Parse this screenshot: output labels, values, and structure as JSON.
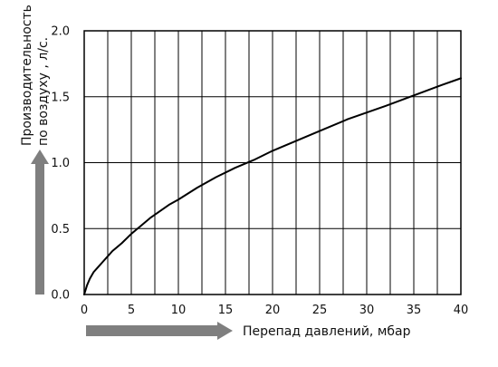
{
  "chart_data": {
    "type": "line",
    "title": "",
    "xlabel": "Перепад давлений, мбар",
    "ylabel_lines": [
      "Производительность",
      "по воздуху , л/с."
    ],
    "xlim": [
      0,
      40
    ],
    "ylim": [
      0,
      2.0
    ],
    "x_ticks": [
      0,
      5,
      10,
      15,
      20,
      25,
      30,
      35,
      40
    ],
    "x_tick_labels": [
      "0",
      "5",
      "10",
      "15",
      "20",
      "25",
      "30",
      "35",
      "40"
    ],
    "y_ticks": [
      0,
      0.5,
      1.0,
      1.5,
      2.0
    ],
    "y_tick_labels": [
      "0.0",
      "0.5",
      "1.0",
      "1.5",
      "2.0"
    ],
    "x_grid_lines": [
      0,
      2.5,
      5,
      7.5,
      10,
      12.5,
      15,
      17.5,
      20,
      22.5,
      25,
      27.5,
      30,
      32.5,
      35,
      37.5,
      40
    ],
    "y_grid_lines": [
      0,
      0.5,
      1.0,
      1.5,
      2.0
    ],
    "grid": true,
    "series": [
      {
        "x": [
          0,
          0.3,
          0.6,
          1,
          1.5,
          2,
          2.5,
          3,
          4,
          5,
          6,
          7,
          8,
          9,
          10,
          12,
          14,
          16,
          18,
          20,
          22,
          25,
          28,
          30,
          32,
          35,
          38,
          40
        ],
        "values": [
          0,
          0.07,
          0.12,
          0.17,
          0.21,
          0.25,
          0.29,
          0.33,
          0.39,
          0.46,
          0.52,
          0.58,
          0.63,
          0.68,
          0.72,
          0.81,
          0.89,
          0.96,
          1.02,
          1.09,
          1.15,
          1.24,
          1.33,
          1.38,
          1.43,
          1.51,
          1.59,
          1.64
        ],
        "color": "#000000"
      }
    ],
    "arrow_color": "#7f7f7f"
  }
}
